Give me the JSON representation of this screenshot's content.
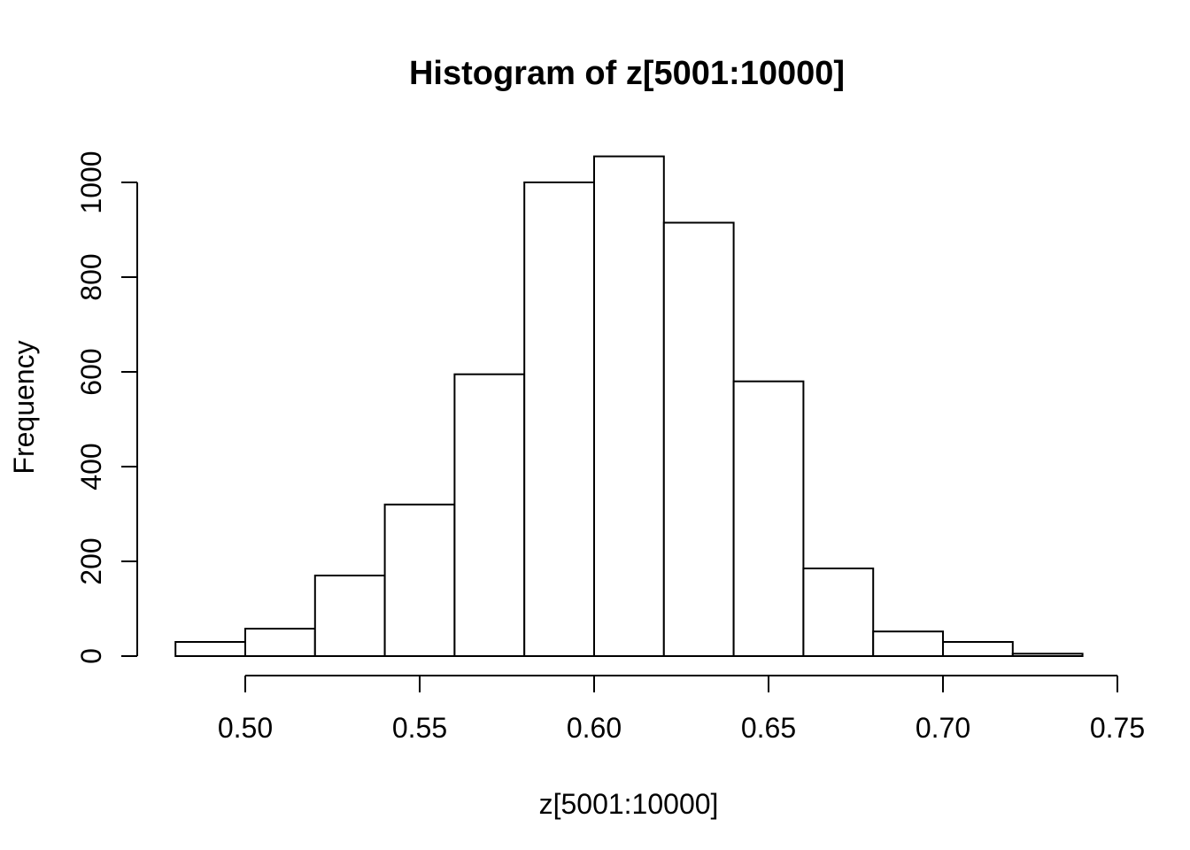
{
  "figure": {
    "background": "#ffffff",
    "foreground": "#000000"
  },
  "chart_data": {
    "type": "bar",
    "variant": "histogram",
    "title": "Histogram of z[5001:10000]",
    "xlabel": "z[5001:10000]",
    "ylabel": "Frequency",
    "bin_start": 0.48,
    "bin_width": 0.02,
    "bin_edges": [
      0.48,
      0.5,
      0.52,
      0.54,
      0.56,
      0.58,
      0.6,
      0.62,
      0.64,
      0.66,
      0.68,
      0.7,
      0.72,
      0.74
    ],
    "counts": [
      30,
      58,
      170,
      320,
      595,
      1000,
      1055,
      915,
      580,
      185,
      52,
      30,
      5
    ],
    "x_ticks": {
      "values": [
        0.5,
        0.55,
        0.6,
        0.65,
        0.7,
        0.75
      ],
      "labels": [
        "0.50",
        "0.55",
        "0.60",
        "0.65",
        "0.70",
        "0.75"
      ]
    },
    "y_ticks": {
      "values": [
        0,
        200,
        400,
        600,
        800,
        1000
      ],
      "labels": [
        "0",
        "200",
        "400",
        "600",
        "800",
        "1000"
      ]
    },
    "xlim": [
      0.5,
      0.75
    ],
    "ylim": [
      0,
      1000
    ],
    "grid": false,
    "legend_position": "none",
    "bar_fill": "#ffffff",
    "bar_stroke": "#000000",
    "axis_color": "#000000"
  }
}
